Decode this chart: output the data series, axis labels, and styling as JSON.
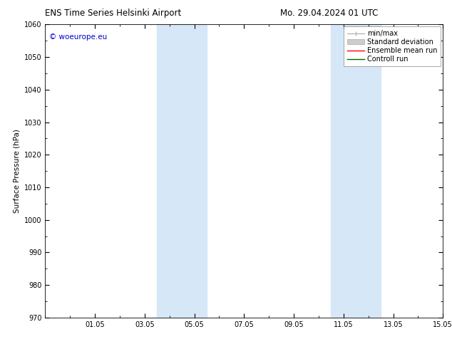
{
  "title_left": "ENS Time Series Helsinki Airport",
  "title_right": "Mo. 29.04.2024 01 UTC",
  "ylabel": "Surface Pressure (hPa)",
  "ylim": [
    970,
    1060
  ],
  "yticks": [
    970,
    980,
    990,
    1000,
    1010,
    1020,
    1030,
    1040,
    1050,
    1060
  ],
  "xlim": [
    0,
    16
  ],
  "xtick_labels": [
    "01.05",
    "03.05",
    "05.05",
    "07.05",
    "09.05",
    "11.05",
    "13.05",
    "15.05"
  ],
  "xtick_positions": [
    2,
    4,
    6,
    8,
    10,
    12,
    14,
    16
  ],
  "watermark": "© woeurope.eu",
  "watermark_color": "#0000cc",
  "shaded_bands": [
    {
      "x_start": 4.5,
      "x_end": 6.5
    },
    {
      "x_start": 11.5,
      "x_end": 13.5
    }
  ],
  "shade_color": "#d6e8f7",
  "background_color": "#ffffff",
  "legend_min_max_color": "#aaaaaa",
  "legend_std_color": "#cccccc",
  "legend_mean_color": "#ff0000",
  "legend_ctrl_color": "#006600",
  "font_family": "DejaVu Sans",
  "title_fontsize": 8.5,
  "tick_fontsize": 7,
  "legend_fontsize": 7,
  "ylabel_fontsize": 7.5,
  "watermark_fontsize": 7.5
}
